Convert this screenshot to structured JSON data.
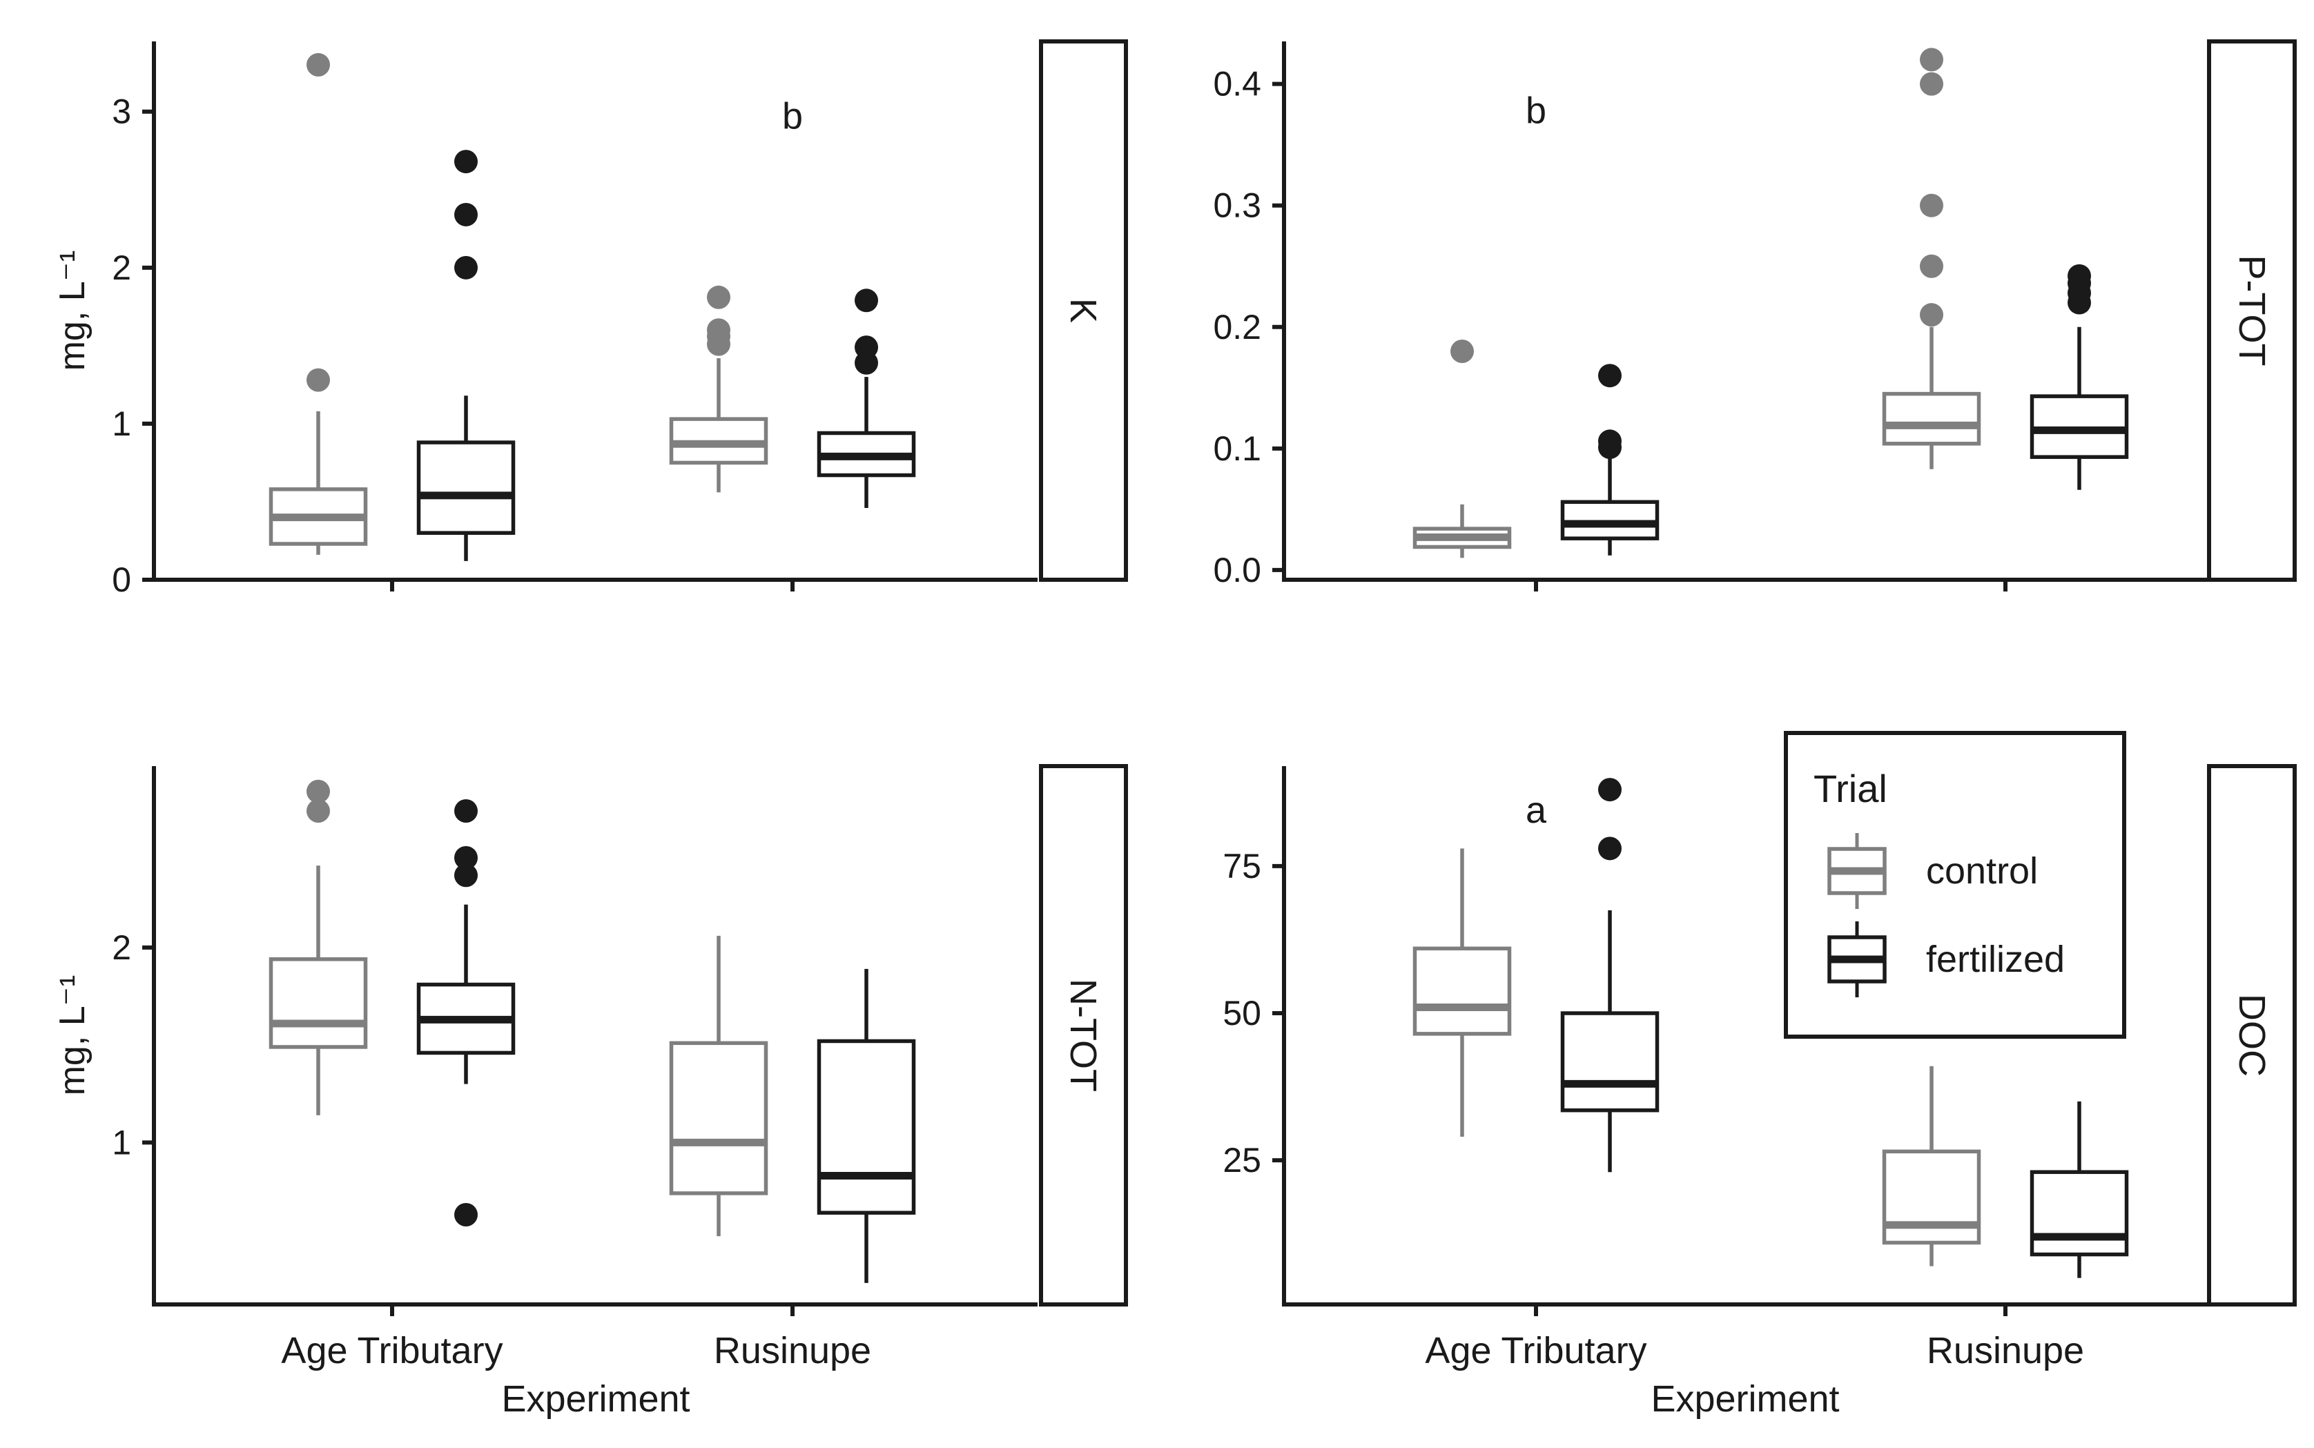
{
  "chart_data": [
    {
      "type": "box",
      "panel": "K",
      "strip_label": "K",
      "ylabel": "mg, L⁻¹",
      "xlabel": "",
      "ylim": [
        0,
        3.45
      ],
      "yticks": [
        0,
        1,
        2,
        3
      ],
      "ytick_labels": [
        "0",
        "1",
        "2",
        "3"
      ],
      "categories": [
        "Age Tributary",
        "Rusinupe"
      ],
      "annotations": [
        {
          "text": "b",
          "category": "Rusinupe",
          "y": 2.97
        }
      ],
      "series": [
        {
          "name": "control",
          "boxes": [
            {
              "whislo": 0.16,
              "q1": 0.23,
              "med": 0.4,
              "q3": 0.58,
              "whishi": 1.08,
              "fliers": [
                1.28,
                3.3
              ]
            },
            {
              "whislo": 0.56,
              "q1": 0.75,
              "med": 0.87,
              "q3": 1.03,
              "whishi": 1.42,
              "fliers": [
                1.51,
                1.56,
                1.6,
                1.81
              ]
            }
          ]
        },
        {
          "name": "fertilized",
          "boxes": [
            {
              "whislo": 0.12,
              "q1": 0.3,
              "med": 0.54,
              "q3": 0.88,
              "whishi": 1.18,
              "fliers": [
                2.0,
                2.34,
                2.68
              ]
            },
            {
              "whislo": 0.46,
              "q1": 0.67,
              "med": 0.79,
              "q3": 0.94,
              "whishi": 1.3,
              "fliers": [
                1.39,
                1.49,
                1.79
              ]
            }
          ]
        }
      ]
    },
    {
      "type": "box",
      "panel": "P-TOT",
      "strip_label": "P-TOT",
      "ylabel": "",
      "xlabel": "",
      "ylim": [
        -0.008,
        0.435
      ],
      "yticks": [
        0,
        0.1,
        0.2,
        0.3,
        0.4
      ],
      "ytick_labels": [
        "0.0",
        "0.1",
        "0.2",
        "0.3",
        "0.4"
      ],
      "categories": [
        "Age Tributary",
        "Rusinupe"
      ],
      "annotations": [
        {
          "text": "b",
          "category": "Age Tributary",
          "y": 0.378
        }
      ],
      "series": [
        {
          "name": "control",
          "boxes": [
            {
              "whislo": 0.01,
              "q1": 0.019,
              "med": 0.027,
              "q3": 0.034,
              "whishi": 0.054,
              "fliers": [
                0.18
              ]
            },
            {
              "whislo": 0.083,
              "q1": 0.104,
              "med": 0.119,
              "q3": 0.145,
              "whishi": 0.2,
              "fliers": [
                0.21,
                0.25,
                0.3,
                0.4,
                0.42
              ]
            }
          ]
        },
        {
          "name": "fertilized",
          "boxes": [
            {
              "whislo": 0.012,
              "q1": 0.026,
              "med": 0.038,
              "q3": 0.056,
              "whishi": 0.095,
              "fliers": [
                0.101,
                0.106,
                0.16
              ]
            },
            {
              "whislo": 0.066,
              "q1": 0.093,
              "med": 0.115,
              "q3": 0.143,
              "whishi": 0.2,
              "fliers": [
                0.22,
                0.228,
                0.236,
                0.242
              ]
            }
          ]
        }
      ]
    },
    {
      "type": "box",
      "panel": "N-TOT",
      "strip_label": "N-TOT",
      "ylabel": "mg, L⁻¹",
      "xlabel": "Experiment",
      "ylim": [
        0.17,
        2.93
      ],
      "yticks": [
        1,
        2
      ],
      "ytick_labels": [
        "1",
        "2"
      ],
      "categories": [
        "Age Tributary",
        "Rusinupe"
      ],
      "annotations": [],
      "series": [
        {
          "name": "control",
          "boxes": [
            {
              "whislo": 1.14,
              "q1": 1.49,
              "med": 1.61,
              "q3": 1.94,
              "whishi": 2.42,
              "fliers": [
                2.7,
                2.8
              ]
            },
            {
              "whislo": 0.52,
              "q1": 0.74,
              "med": 1.0,
              "q3": 1.51,
              "whishi": 2.06,
              "fliers": []
            }
          ]
        },
        {
          "name": "fertilized",
          "boxes": [
            {
              "whislo": 1.3,
              "q1": 1.46,
              "med": 1.63,
              "q3": 1.81,
              "whishi": 2.22,
              "fliers": [
                0.63,
                2.37,
                2.46,
                2.7
              ]
            },
            {
              "whislo": 0.28,
              "q1": 0.64,
              "med": 0.83,
              "q3": 1.52,
              "whishi": 1.89,
              "fliers": []
            }
          ]
        }
      ]
    },
    {
      "type": "box",
      "panel": "DOC",
      "strip_label": "DOC",
      "ylabel": "",
      "xlabel": "Experiment",
      "ylim": [
        0.5,
        92
      ],
      "yticks": [
        25,
        50,
        75
      ],
      "ytick_labels": [
        "25",
        "50",
        "75"
      ],
      "categories": [
        "Age Tributary",
        "Rusinupe"
      ],
      "annotations": [
        {
          "text": "a",
          "category": "Age Tributary",
          "y": 84.5
        }
      ],
      "series": [
        {
          "name": "control",
          "boxes": [
            {
              "whislo": 29,
              "q1": 46.5,
              "med": 51,
              "q3": 61,
              "whishi": 78,
              "fliers": []
            },
            {
              "whislo": 7,
              "q1": 11,
              "med": 14,
              "q3": 26.5,
              "whishi": 41,
              "fliers": []
            }
          ]
        },
        {
          "name": "fertilized",
          "boxes": [
            {
              "whislo": 23,
              "q1": 33.5,
              "med": 38,
              "q3": 50,
              "whishi": 67.5,
              "fliers": [
                78,
                88
              ]
            },
            {
              "whislo": 5,
              "q1": 9,
              "med": 12,
              "q3": 23,
              "whishi": 35,
              "fliers": []
            }
          ]
        }
      ]
    }
  ],
  "legend": {
    "title": "Trial",
    "items": [
      {
        "label": "control",
        "color": "#7f7f7f"
      },
      {
        "label": "fertilized",
        "color": "#1a1a1a"
      }
    ],
    "placement": "top-right of bottom-right panel"
  },
  "colors": {
    "control": "#7f7f7f",
    "fertilized": "#1a1a1a",
    "axis": "#1a1a1a",
    "background": "#ffffff"
  }
}
